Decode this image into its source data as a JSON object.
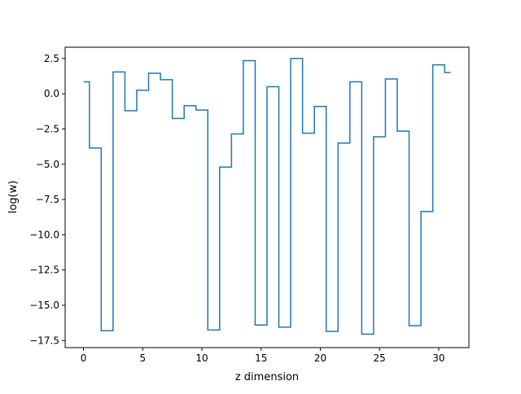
{
  "chart_data": {
    "type": "line",
    "drawstyle": "steps-mid",
    "title": "",
    "xlabel": "z dimension",
    "ylabel": "log(w)",
    "xlim": [
      -1.55,
      32.55
    ],
    "ylim": [
      -18.0,
      3.3
    ],
    "xticks": [
      0,
      5,
      10,
      15,
      20,
      25,
      30
    ],
    "xtick_labels": [
      "0",
      "5",
      "10",
      "15",
      "20",
      "25",
      "30"
    ],
    "yticks": [
      2.5,
      0.0,
      -2.5,
      -5.0,
      -7.5,
      -10.0,
      -12.5,
      -15.0,
      -17.5
    ],
    "ytick_labels": [
      "2.5",
      "0.0",
      "−2.5",
      "−5.0",
      "−7.5",
      "−10.0",
      "−12.5",
      "−15.0",
      "−17.5"
    ],
    "grid": false,
    "series": [
      {
        "color": "#1f77b4",
        "x": [
          0,
          1,
          2,
          3,
          4,
          5,
          6,
          7,
          8,
          9,
          10,
          11,
          12,
          13,
          14,
          15,
          16,
          17,
          18,
          19,
          20,
          21,
          22,
          23,
          24,
          25,
          26,
          27,
          28,
          29,
          30,
          31
        ],
        "values": [
          0.85,
          -3.85,
          -16.8,
          1.55,
          -1.2,
          0.25,
          1.45,
          1.0,
          -1.75,
          -0.85,
          -1.15,
          -16.75,
          -5.2,
          -2.85,
          2.35,
          -16.4,
          0.5,
          -16.55,
          2.5,
          -2.8,
          -0.9,
          -16.85,
          -3.5,
          0.85,
          -17.05,
          -3.05,
          1.05,
          -2.65,
          -16.45,
          -8.35,
          2.05,
          1.5
        ]
      }
    ]
  }
}
